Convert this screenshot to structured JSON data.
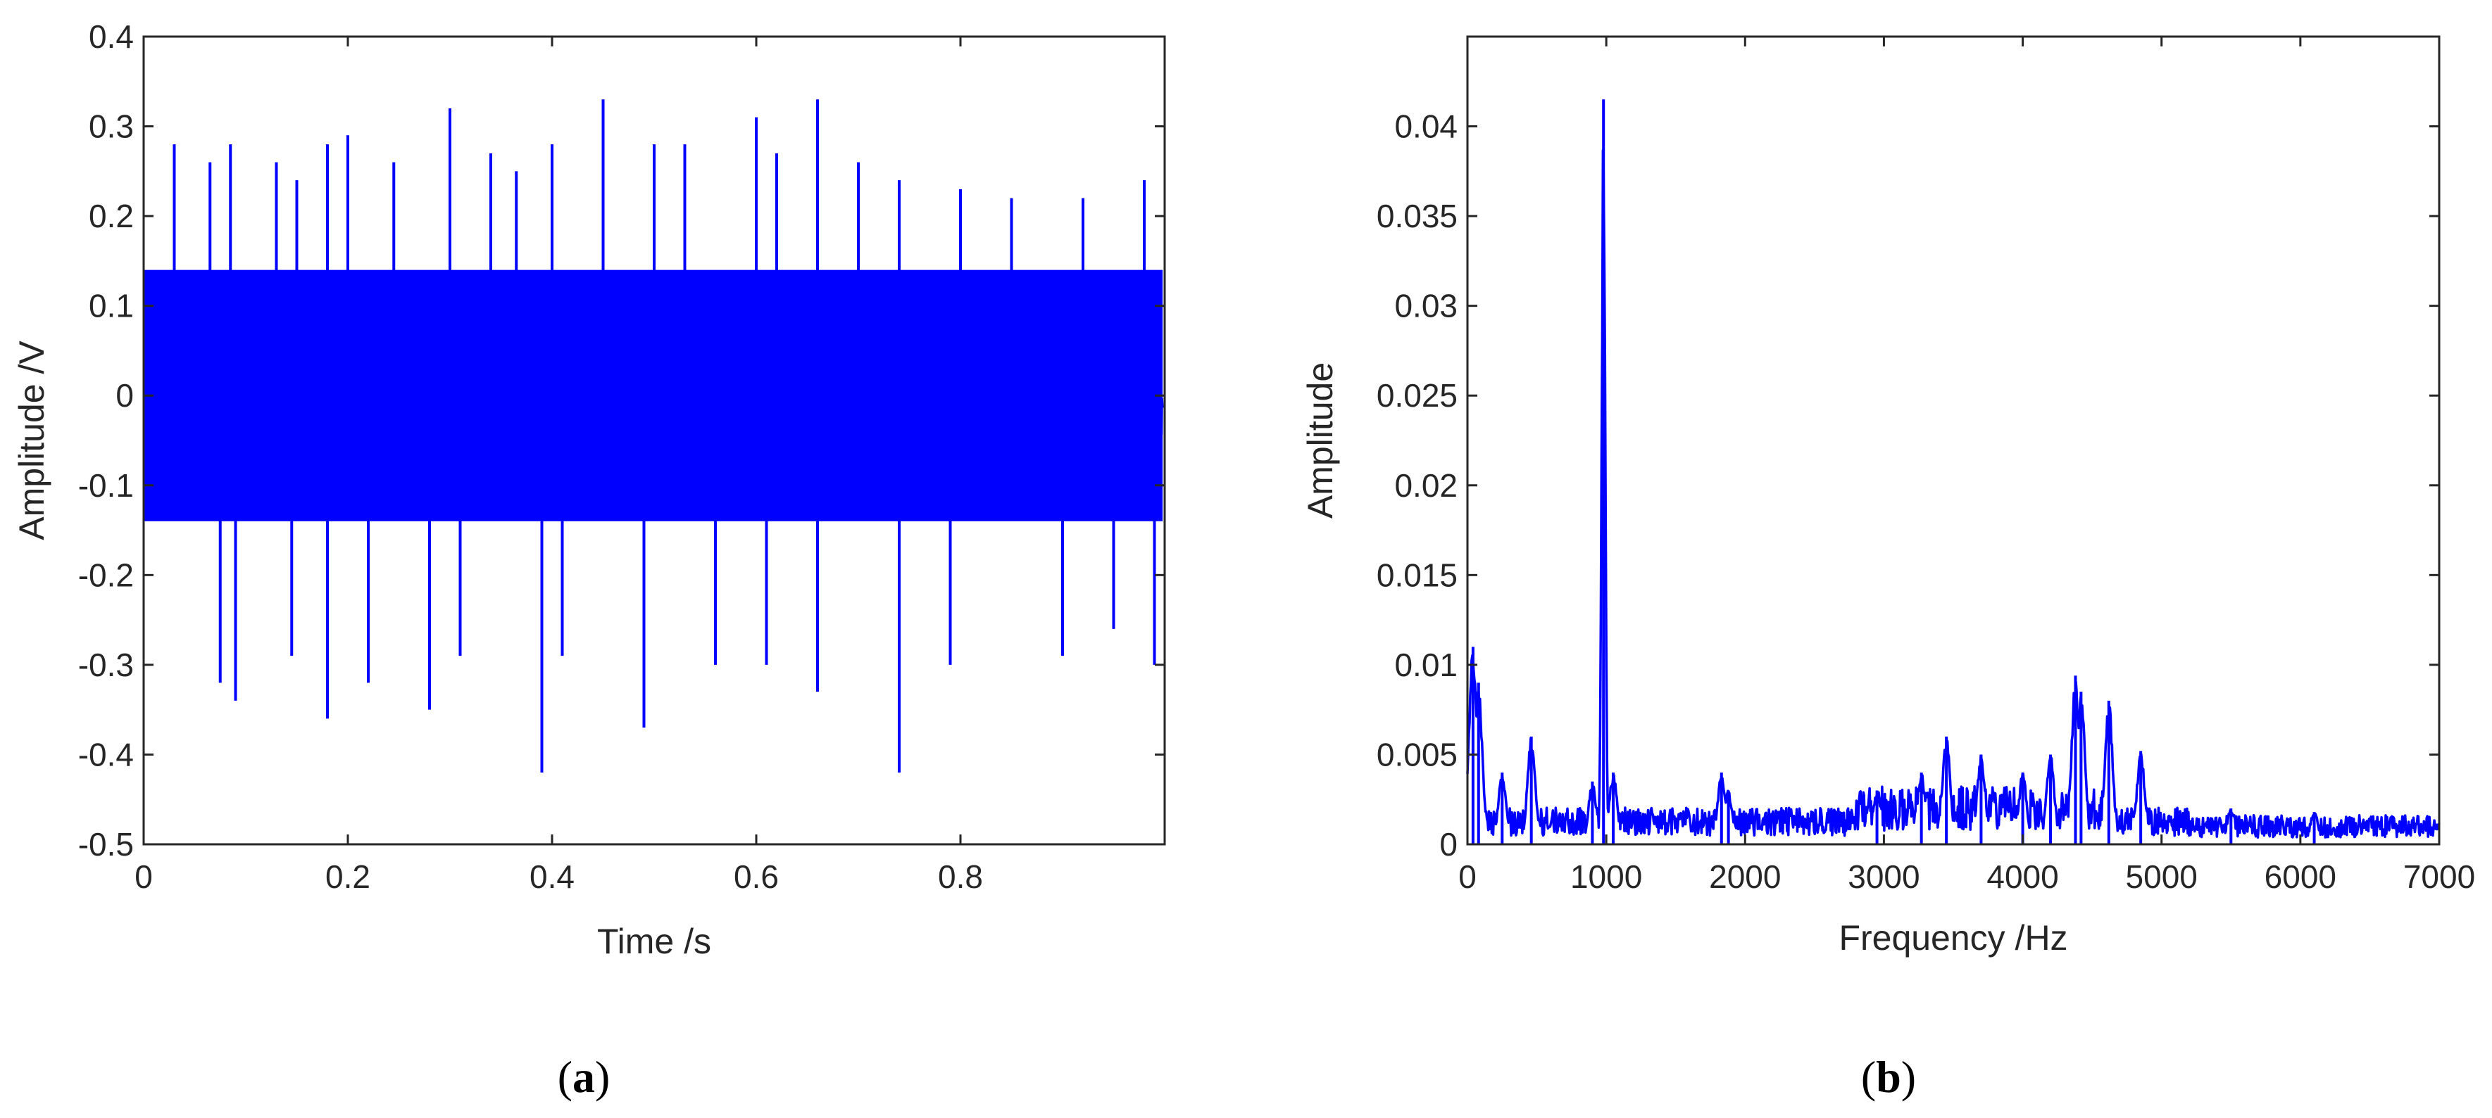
{
  "colors": {
    "signal": "#0000ff",
    "axis": "#262626",
    "background": "#ffffff"
  },
  "chart_data": [
    {
      "id": "a",
      "type": "line",
      "caption": "a",
      "xlabel": "Time /s",
      "ylabel": "Amplitude /V",
      "xlim": [
        0,
        1.0
      ],
      "ylim": [
        -0.5,
        0.4
      ],
      "xticks": [
        "0",
        "0.2",
        "0.4",
        "0.6",
        "0.8"
      ],
      "xtick_values": [
        0,
        0.2,
        0.4,
        0.6,
        0.8
      ],
      "yticks": [
        "0.4",
        "0.3",
        "0.2",
        "0.1",
        "0",
        "-0.1",
        "-0.2",
        "-0.3",
        "-0.4",
        "-0.5"
      ],
      "ytick_values": [
        0.4,
        0.3,
        0.2,
        0.1,
        0,
        -0.1,
        -0.2,
        -0.3,
        -0.4,
        -0.5
      ],
      "grid": false,
      "series": [
        {
          "color": "#0000ff",
          "band_envelope": {
            "typical_upper": 0.14,
            "typical_lower": -0.14
          },
          "positive_peaks": [
            [
              0.03,
              0.28
            ],
            [
              0.065,
              0.26
            ],
            [
              0.085,
              0.28
            ],
            [
              0.13,
              0.26
            ],
            [
              0.15,
              0.24
            ],
            [
              0.18,
              0.28
            ],
            [
              0.2,
              0.29
            ],
            [
              0.245,
              0.26
            ],
            [
              0.3,
              0.32
            ],
            [
              0.34,
              0.27
            ],
            [
              0.365,
              0.25
            ],
            [
              0.4,
              0.28
            ],
            [
              0.45,
              0.33
            ],
            [
              0.5,
              0.28
            ],
            [
              0.53,
              0.28
            ],
            [
              0.6,
              0.31
            ],
            [
              0.62,
              0.27
            ],
            [
              0.66,
              0.33
            ],
            [
              0.7,
              0.26
            ],
            [
              0.74,
              0.24
            ],
            [
              0.8,
              0.23
            ],
            [
              0.85,
              0.22
            ],
            [
              0.92,
              0.22
            ],
            [
              0.98,
              0.24
            ]
          ],
          "negative_peaks": [
            [
              0.075,
              -0.32
            ],
            [
              0.09,
              -0.34
            ],
            [
              0.145,
              -0.29
            ],
            [
              0.18,
              -0.36
            ],
            [
              0.22,
              -0.32
            ],
            [
              0.28,
              -0.35
            ],
            [
              0.31,
              -0.29
            ],
            [
              0.39,
              -0.42
            ],
            [
              0.41,
              -0.29
            ],
            [
              0.49,
              -0.37
            ],
            [
              0.56,
              -0.3
            ],
            [
              0.61,
              -0.3
            ],
            [
              0.66,
              -0.33
            ],
            [
              0.74,
              -0.42
            ],
            [
              0.79,
              -0.3
            ],
            [
              0.9,
              -0.29
            ],
            [
              0.95,
              -0.26
            ],
            [
              0.99,
              -0.3
            ]
          ]
        }
      ]
    },
    {
      "id": "b",
      "type": "line",
      "caption": "b",
      "xlabel": "Frequency /Hz",
      "ylabel": "Amplitude",
      "xlim": [
        0,
        7000
      ],
      "ylim": [
        0,
        0.045
      ],
      "xticks": [
        "0",
        "1000",
        "2000",
        "3000",
        "4000",
        "5000",
        "6000",
        "7000"
      ],
      "xtick_values": [
        0,
        1000,
        2000,
        3000,
        4000,
        5000,
        6000,
        7000
      ],
      "yticks": [
        "0.04",
        "0.035",
        "0.03",
        "0.025",
        "0.02",
        "0.015",
        "0.01",
        "0.005",
        "0"
      ],
      "ytick_values": [
        0.04,
        0.035,
        0.03,
        0.025,
        0.02,
        0.015,
        0.01,
        0.005,
        0
      ],
      "grid": false,
      "series": [
        {
          "color": "#0000ff",
          "noise_floor": 0.0012,
          "peaks": [
            [
              40,
              0.011
            ],
            [
              80,
              0.009
            ],
            [
              250,
              0.004
            ],
            [
              460,
              0.006
            ],
            [
              900,
              0.0035
            ],
            [
              980,
              0.0415
            ],
            [
              1050,
              0.004
            ],
            [
              1830,
              0.004
            ],
            [
              1880,
              0.003
            ],
            [
              2950,
              0.003
            ],
            [
              3270,
              0.004
            ],
            [
              3450,
              0.006
            ],
            [
              3700,
              0.005
            ],
            [
              4000,
              0.004
            ],
            [
              4200,
              0.005
            ],
            [
              4380,
              0.0094
            ],
            [
              4420,
              0.0085
            ],
            [
              4620,
              0.008
            ],
            [
              4850,
              0.0052
            ],
            [
              5500,
              0.002
            ],
            [
              6100,
              0.0018
            ]
          ]
        }
      ]
    }
  ]
}
